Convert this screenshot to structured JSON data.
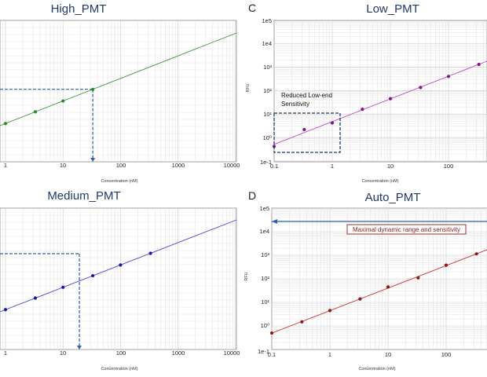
{
  "panels": [
    {
      "id": "high",
      "title": "High_PMT",
      "panel_label": "",
      "xlabel": "Concentration (nM)",
      "ylabel": "",
      "colors": {
        "line": "#3a9a3a",
        "points": "#2a8a2a",
        "guide": "#2e5fa8"
      },
      "x_tick_labels": [
        "1",
        "10",
        "100",
        "1000",
        "10000"
      ],
      "y_tick_labels": [],
      "annotation": ""
    },
    {
      "id": "low",
      "title": "Low_PMT",
      "panel_label": "C",
      "xlabel": "Concentration (nM)",
      "ylabel": "RFU",
      "colors": {
        "line": "#c04fc8",
        "points": "#7a1a7a",
        "box": "#1f3864"
      },
      "x_tick_labels": [
        "0.1",
        "1",
        "10",
        "100"
      ],
      "y_tick_labels": [
        "1e-1",
        "10⁰",
        "10¹",
        "10²",
        "10³",
        "1e4",
        "1e5"
      ],
      "annotation": "Reduced Low-end Sensitivity"
    },
    {
      "id": "medium",
      "title": "Medium_PMT",
      "panel_label": "",
      "xlabel": "Concentration (nM)",
      "ylabel": "",
      "colors": {
        "line": "#4a4ad0",
        "points": "#1a1a9a",
        "guide": "#2e5fa8"
      },
      "x_tick_labels": [
        "1",
        "10",
        "100",
        "1000",
        "10000"
      ],
      "y_tick_labels": [],
      "annotation": ""
    },
    {
      "id": "auto",
      "title": "Auto_PMT",
      "panel_label": "D",
      "xlabel": "Concentration (nM)",
      "ylabel": "RFU",
      "colors": {
        "line": "#cc3333",
        "points": "#8a1a1a",
        "arrow": "#2e5fa8",
        "annotation_border": "#8a1a1a"
      },
      "x_tick_labels": [
        "0.1",
        "1",
        "10",
        "100"
      ],
      "y_tick_labels": [
        "1e-1",
        "10⁰",
        "10¹",
        "10²",
        "10³",
        "1e4",
        "1e5"
      ],
      "annotation": "Maximal dynamic range and sensitivity"
    }
  ],
  "chart_data": [
    {
      "type": "scatter",
      "title": "High_PMT",
      "xlabel": "Concentration (nM)",
      "ylabel": "",
      "x_scale": "log",
      "xlim": [
        0.1,
        10000
      ],
      "series": [
        {
          "x": [
            1,
            3.3,
            10,
            33
          ],
          "fit": "linear on log-log"
        }
      ]
    },
    {
      "type": "scatter",
      "title": "Low_PMT",
      "xlabel": "Concentration (nM)",
      "ylabel": "RFU",
      "x_scale": "log",
      "y_scale": "log",
      "xlim": [
        0.1,
        400
      ],
      "ylim": [
        0.1,
        100000
      ],
      "series": [
        {
          "x": [
            0.1,
            0.33,
            1,
            3.3,
            10,
            33,
            100,
            333
          ],
          "y": [
            0.42,
            2.2,
            4.2,
            16,
            45,
            135,
            400,
            1300
          ],
          "fit": "linear on log-log"
        }
      ]
    },
    {
      "type": "scatter",
      "title": "Medium_PMT",
      "xlabel": "Concentration (nM)",
      "ylabel": "",
      "x_scale": "log",
      "xlim": [
        0.1,
        10000
      ],
      "series": [
        {
          "x": [
            1,
            3.3,
            10,
            33,
            100,
            333
          ],
          "fit": "linear on log-log"
        }
      ]
    },
    {
      "type": "scatter",
      "title": "Auto_PMT",
      "xlabel": "Concentration (nM)",
      "ylabel": "RFU",
      "x_scale": "log",
      "y_scale": "log",
      "xlim": [
        0.1,
        400
      ],
      "ylim": [
        0.1,
        100000
      ],
      "series": [
        {
          "x": [
            0.1,
            0.33,
            1,
            3.3,
            10,
            33,
            100,
            333
          ],
          "y": [
            0.5,
            1.5,
            4.5,
            14,
            45,
            110,
            380,
            1150
          ],
          "fit": "linear on log-log"
        }
      ]
    }
  ]
}
